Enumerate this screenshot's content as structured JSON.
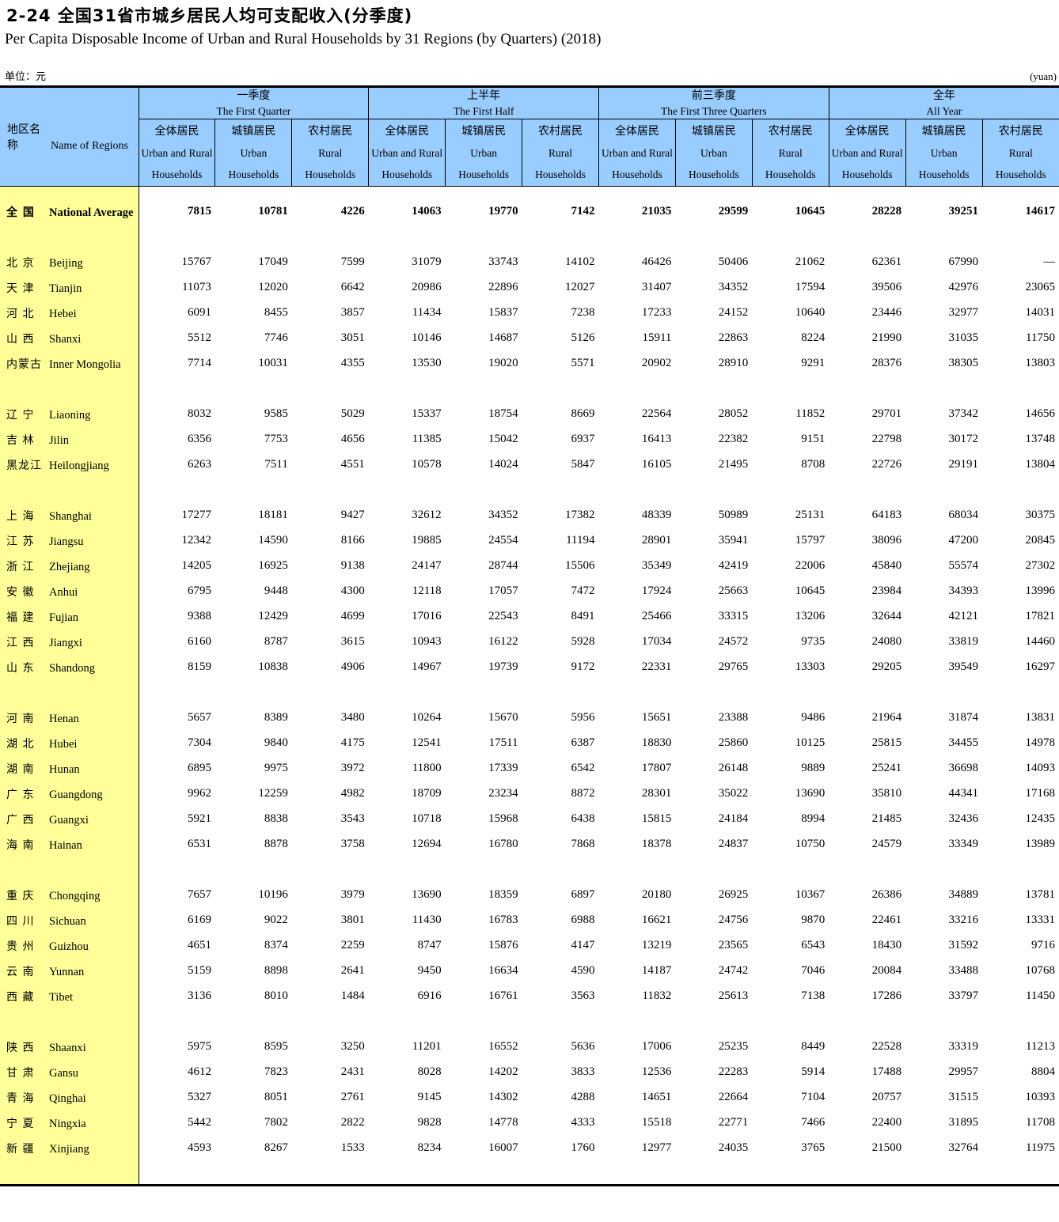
{
  "page": {
    "title_zh": "2-24  全国31省市城乡居民人均可支配收入(分季度)",
    "title_en": "Per Capita Disposable Income of Urban and Rural Households by 31 Regions (by Quarters) (2018)",
    "unit_zh": "单位：元",
    "unit_en": "(yuan)"
  },
  "table": {
    "region_header": {
      "zh": "地区名称",
      "en": "Name of Regions"
    },
    "groups": [
      {
        "zh": "一季度",
        "en": "The First Quarter"
      },
      {
        "zh": "上半年",
        "en": "The First Half"
      },
      {
        "zh": "前三季度",
        "en": "The First Three Quarters"
      },
      {
        "zh": "全年",
        "en": "All Year"
      }
    ],
    "subcolumns": [
      {
        "zh": "全体居民",
        "en1": "Urban and Rural",
        "en2": "Households"
      },
      {
        "zh": "城镇居民",
        "en1": "Urban",
        "en2": "Households"
      },
      {
        "zh": "农村居民",
        "en1": "Rural",
        "en2": "Households"
      }
    ],
    "rows": [
      {
        "zh": "全 国",
        "en": "National Average",
        "bold": true,
        "gap_before": false,
        "values": [
          7815,
          10781,
          4226,
          14063,
          19770,
          7142,
          21035,
          29599,
          10645,
          28228,
          39251,
          14617
        ]
      },
      {
        "zh": "北 京",
        "en": "Beijing",
        "bold": false,
        "gap_before": true,
        "values": [
          15767,
          17049,
          7599,
          31079,
          33743,
          14102,
          46426,
          50406,
          21062,
          62361,
          67990,
          "—"
        ]
      },
      {
        "zh": "天 津",
        "en": "Tianjin",
        "bold": false,
        "gap_before": false,
        "values": [
          11073,
          12020,
          6642,
          20986,
          22896,
          12027,
          31407,
          34352,
          17594,
          39506,
          42976,
          23065
        ]
      },
      {
        "zh": "河 北",
        "en": "Hebei",
        "bold": false,
        "gap_before": false,
        "values": [
          6091,
          8455,
          3857,
          11434,
          15837,
          7238,
          17233,
          24152,
          10640,
          23446,
          32977,
          14031
        ]
      },
      {
        "zh": "山 西",
        "en": "Shanxi",
        "bold": false,
        "gap_before": false,
        "values": [
          5512,
          7746,
          3051,
          10146,
          14687,
          5126,
          15911,
          22863,
          8224,
          21990,
          31035,
          11750
        ]
      },
      {
        "zh": "内蒙古",
        "en": "Inner Mongolia",
        "bold": false,
        "gap_before": false,
        "values": [
          7714,
          10031,
          4355,
          13530,
          19020,
          5571,
          20902,
          28910,
          9291,
          28376,
          38305,
          13803
        ]
      },
      {
        "zh": "辽 宁",
        "en": "Liaoning",
        "bold": false,
        "gap_before": true,
        "values": [
          8032,
          9585,
          5029,
          15337,
          18754,
          8669,
          22564,
          28052,
          11852,
          29701,
          37342,
          14656
        ]
      },
      {
        "zh": "吉 林",
        "en": "Jilin",
        "bold": false,
        "gap_before": false,
        "values": [
          6356,
          7753,
          4656,
          11385,
          15042,
          6937,
          16413,
          22382,
          9151,
          22798,
          30172,
          13748
        ]
      },
      {
        "zh": "黑龙江",
        "en": "Heilongjiang",
        "bold": false,
        "gap_before": false,
        "values": [
          6263,
          7511,
          4551,
          10578,
          14024,
          5847,
          16105,
          21495,
          8708,
          22726,
          29191,
          13804
        ]
      },
      {
        "zh": "上 海",
        "en": "Shanghai",
        "bold": false,
        "gap_before": true,
        "values": [
          17277,
          18181,
          9427,
          32612,
          34352,
          17382,
          48339,
          50989,
          25131,
          64183,
          68034,
          30375
        ]
      },
      {
        "zh": "江 苏",
        "en": "Jiangsu",
        "bold": false,
        "gap_before": false,
        "values": [
          12342,
          14590,
          8166,
          19885,
          24554,
          11194,
          28901,
          35941,
          15797,
          38096,
          47200,
          20845
        ]
      },
      {
        "zh": "浙 江",
        "en": "Zhejiang",
        "bold": false,
        "gap_before": false,
        "values": [
          14205,
          16925,
          9138,
          24147,
          28744,
          15506,
          35349,
          42419,
          22006,
          45840,
          55574,
          27302
        ]
      },
      {
        "zh": "安 徽",
        "en": "Anhui",
        "bold": false,
        "gap_before": false,
        "values": [
          6795,
          9448,
          4300,
          12118,
          17057,
          7472,
          17924,
          25663,
          10645,
          23984,
          34393,
          13996
        ]
      },
      {
        "zh": "福 建",
        "en": "Fujian",
        "bold": false,
        "gap_before": false,
        "values": [
          9388,
          12429,
          4699,
          17016,
          22543,
          8491,
          25466,
          33315,
          13206,
          32644,
          42121,
          17821
        ]
      },
      {
        "zh": "江 西",
        "en": "Jiangxi",
        "bold": false,
        "gap_before": false,
        "values": [
          6160,
          8787,
          3615,
          10943,
          16122,
          5928,
          17034,
          24572,
          9735,
          24080,
          33819,
          14460
        ]
      },
      {
        "zh": "山 东",
        "en": "Shandong",
        "bold": false,
        "gap_before": false,
        "values": [
          8159,
          10838,
          4906,
          14967,
          19739,
          9172,
          22331,
          29765,
          13303,
          29205,
          39549,
          16297
        ]
      },
      {
        "zh": "河 南",
        "en": "Henan",
        "bold": false,
        "gap_before": true,
        "values": [
          5657,
          8389,
          3480,
          10264,
          15670,
          5956,
          15651,
          23388,
          9486,
          21964,
          31874,
          13831
        ]
      },
      {
        "zh": "湖 北",
        "en": "Hubei",
        "bold": false,
        "gap_before": false,
        "values": [
          7304,
          9840,
          4175,
          12541,
          17511,
          6387,
          18830,
          25860,
          10125,
          25815,
          34455,
          14978
        ]
      },
      {
        "zh": "湖 南",
        "en": "Hunan",
        "bold": false,
        "gap_before": false,
        "values": [
          6895,
          9975,
          3972,
          11800,
          17339,
          6542,
          17807,
          26148,
          9889,
          25241,
          36698,
          14093
        ]
      },
      {
        "zh": "广 东",
        "en": "Guangdong",
        "bold": false,
        "gap_before": false,
        "values": [
          9962,
          12259,
          4982,
          18709,
          23234,
          8872,
          28301,
          35022,
          13690,
          35810,
          44341,
          17168
        ]
      },
      {
        "zh": "广 西",
        "en": "Guangxi",
        "bold": false,
        "gap_before": false,
        "values": [
          5921,
          8838,
          3543,
          10718,
          15968,
          6438,
          15815,
          24184,
          8994,
          21485,
          32436,
          12435
        ]
      },
      {
        "zh": "海 南",
        "en": "Hainan",
        "bold": false,
        "gap_before": false,
        "values": [
          6531,
          8878,
          3758,
          12694,
          16780,
          7868,
          18378,
          24837,
          10750,
          24579,
          33349,
          13989
        ]
      },
      {
        "zh": "重 庆",
        "en": "Chongqing",
        "bold": false,
        "gap_before": true,
        "values": [
          7657,
          10196,
          3979,
          13690,
          18359,
          6897,
          20180,
          26925,
          10367,
          26386,
          34889,
          13781
        ]
      },
      {
        "zh": "四 川",
        "en": "Sichuan",
        "bold": false,
        "gap_before": false,
        "values": [
          6169,
          9022,
          3801,
          11430,
          16783,
          6988,
          16621,
          24756,
          9870,
          22461,
          33216,
          13331
        ]
      },
      {
        "zh": "贵 州",
        "en": "Guizhou",
        "bold": false,
        "gap_before": false,
        "values": [
          4651,
          8374,
          2259,
          8747,
          15876,
          4147,
          13219,
          23565,
          6543,
          18430,
          31592,
          9716
        ]
      },
      {
        "zh": "云 南",
        "en": "Yunnan",
        "bold": false,
        "gap_before": false,
        "values": [
          5159,
          8898,
          2641,
          9450,
          16634,
          4590,
          14187,
          24742,
          7046,
          20084,
          33488,
          10768
        ]
      },
      {
        "zh": "西 藏",
        "en": "Tibet",
        "bold": false,
        "gap_before": false,
        "values": [
          3136,
          8010,
          1484,
          6916,
          16761,
          3563,
          11832,
          25613,
          7138,
          17286,
          33797,
          11450
        ]
      },
      {
        "zh": "陕 西",
        "en": "Shaanxi",
        "bold": false,
        "gap_before": true,
        "values": [
          5975,
          8595,
          3250,
          11201,
          16552,
          5636,
          17006,
          25235,
          8449,
          22528,
          33319,
          11213
        ]
      },
      {
        "zh": "甘 肃",
        "en": "Gansu",
        "bold": false,
        "gap_before": false,
        "values": [
          4612,
          7823,
          2431,
          8028,
          14202,
          3833,
          12536,
          22283,
          5914,
          17488,
          29957,
          8804
        ]
      },
      {
        "zh": "青 海",
        "en": "Qinghai",
        "bold": false,
        "gap_before": false,
        "values": [
          5327,
          8051,
          2761,
          9145,
          14302,
          4288,
          14651,
          22664,
          7104,
          20757,
          31515,
          10393
        ]
      },
      {
        "zh": "宁 夏",
        "en": "Ningxia",
        "bold": false,
        "gap_before": false,
        "values": [
          5442,
          7802,
          2822,
          9828,
          14778,
          4333,
          15518,
          22771,
          7466,
          22400,
          31895,
          11708
        ]
      },
      {
        "zh": "新 疆",
        "en": "Xinjiang",
        "bold": false,
        "gap_before": false,
        "values": [
          4593,
          8267,
          1533,
          8234,
          16007,
          1760,
          12977,
          24035,
          3765,
          21500,
          32764,
          11975
        ]
      }
    ]
  },
  "colors": {
    "header_blue": "#99CCFF",
    "region_yellow": "#FFFF99",
    "border_black": "#000000"
  }
}
